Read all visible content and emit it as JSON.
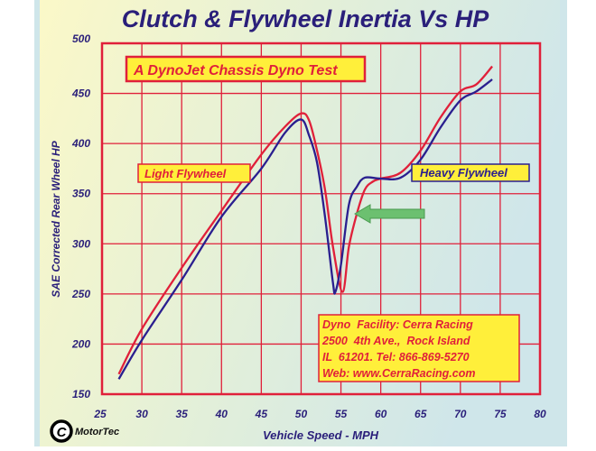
{
  "chart_data": {
    "type": "line",
    "title": "Clutch & Flywheel Inertia Vs HP",
    "xlabel": "Vehicle Speed - MPH",
    "ylabel": "SAE Corrected Rear Wheel HP",
    "xlim": [
      25,
      80
    ],
    "ylim": [
      150,
      500
    ],
    "xticks": [
      25,
      30,
      35,
      40,
      45,
      50,
      55,
      60,
      65,
      70,
      75,
      80
    ],
    "yticks": [
      150,
      200,
      250,
      300,
      350,
      400,
      450,
      500
    ],
    "grid": true,
    "series": [
      {
        "name": "Light Flywheel",
        "color": "#e0203a",
        "x": [
          27.1,
          30,
          35,
          40,
          45,
          48,
          50,
          51,
          52,
          53,
          54,
          55.2,
          56,
          57,
          58,
          59,
          60,
          62.5,
          65,
          67.5,
          70,
          72,
          74
        ],
        "y": [
          170,
          215,
          276,
          333,
          389,
          417,
          430,
          423,
          393,
          354,
          297,
          252,
          297,
          330,
          354,
          362,
          365,
          371,
          393,
          426,
          452,
          459,
          477
        ]
      },
      {
        "name": "Heavy Flywheel",
        "color": "#2a1f8f",
        "x": [
          27.1,
          30,
          35,
          40,
          45,
          48,
          50,
          51,
          52,
          53,
          54,
          54.3,
          55,
          56,
          57,
          58,
          60,
          62.5,
          65,
          67.5,
          70,
          72,
          74
        ],
        "y": [
          165,
          204,
          264,
          327,
          375,
          411,
          424,
          408,
          381,
          327,
          261,
          252,
          279,
          339,
          357,
          366,
          365,
          366,
          384,
          416,
          443,
          452,
          464
        ]
      }
    ],
    "annotations": {
      "test_label": "A DynoJet Chassis Dyno Test",
      "facility_lines": [
        "Dyno  Facility: Cerra Racing",
        "2500  4th Ave.,  Rock Island",
        "IL  61201. Tel: 866-869-5270",
        "Web: www.CerraRacing.com"
      ],
      "arrow": "green arrow pointing left at Heavy Flywheel recovery near 57 MPH"
    },
    "legend_placement": "inline labels"
  },
  "credit": "MotorTec",
  "colors": {
    "grid": "#e0203a",
    "text": "#2a1f7a",
    "label_box": "#ffef3a",
    "arrow": "#6cc070"
  }
}
